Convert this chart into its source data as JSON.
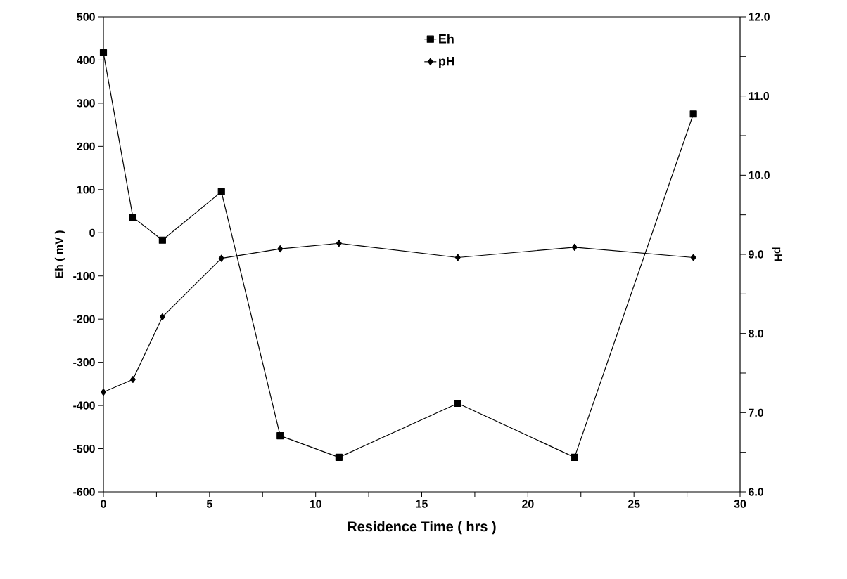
{
  "chart_data": {
    "type": "line",
    "xlabel": "Residence Time ( hrs )",
    "ylabel": "Eh  ( mV )",
    "y2label": "pH",
    "x": [
      0,
      1.39,
      2.78,
      5.56,
      8.33,
      11.1,
      16.7,
      22.2,
      27.8
    ],
    "series": [
      {
        "name": "Eh",
        "color": "#000000",
        "marker": "square",
        "values": [
          417,
          36,
          -17,
          95,
          -470,
          -520,
          -395,
          -520,
          275
        ]
      },
      {
        "name": "pH",
        "color": "#000000",
        "marker": "diamond",
        "axis": "y2",
        "values": [
          7.26,
          7.42,
          8.21,
          8.95,
          9.07,
          9.14,
          8.96,
          9.09,
          8.96
        ]
      }
    ],
    "xlim": [
      0,
      30
    ],
    "xticks": [
      0,
      5,
      10,
      15,
      20,
      25,
      30
    ],
    "ylim": [
      -600,
      500
    ],
    "yticks": [
      -600,
      -500,
      -400,
      -300,
      -200,
      -100,
      0,
      100,
      200,
      300,
      400,
      500
    ],
    "y2lim": [
      6,
      12
    ],
    "y2ticks": [
      {
        "value": 6,
        "label": "6.0"
      },
      {
        "value": 7,
        "label": "7.0"
      },
      {
        "value": 8,
        "label": "8.0"
      },
      {
        "value": 9,
        "label": "9.0"
      },
      {
        "value": 10,
        "label": "10.0"
      },
      {
        "value": 11,
        "label": "11.0"
      },
      {
        "value": 12,
        "label": "12.0"
      }
    ],
    "grid": false,
    "legend": "top",
    "line_style": "solid"
  }
}
